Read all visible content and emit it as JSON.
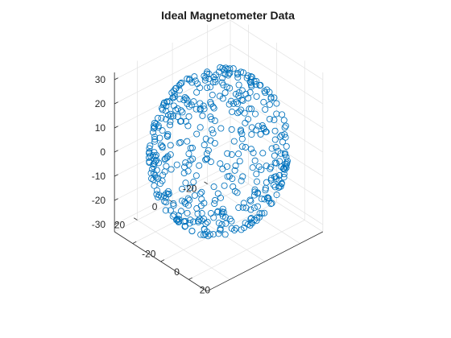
{
  "chart_data": {
    "type": "scatter",
    "title": "Ideal Magnetometer Data",
    "xlabel": "",
    "ylabel": "",
    "zlabel": "",
    "projection": "3d",
    "grid": true,
    "marker": "circle-open",
    "color": "#0072bd",
    "x_ticks": [
      "-20",
      "0",
      "20"
    ],
    "y_ticks": [
      "-20",
      "0",
      "20"
    ],
    "z_ticks": [
      "-30",
      "-20",
      "-10",
      "0",
      "10",
      "20",
      "30"
    ],
    "xlim": [
      -33,
      33
    ],
    "ylim": [
      -33,
      33
    ],
    "zlim": [
      -33,
      33
    ],
    "shape": "sphere",
    "radius": 31,
    "center": [
      0,
      0,
      0
    ],
    "point_count": 500,
    "distribution": "approximately uniform on the sphere surface"
  },
  "colors": {
    "marker": "#0072bd",
    "axis": "#262626",
    "grid": "#e1e1e1"
  }
}
